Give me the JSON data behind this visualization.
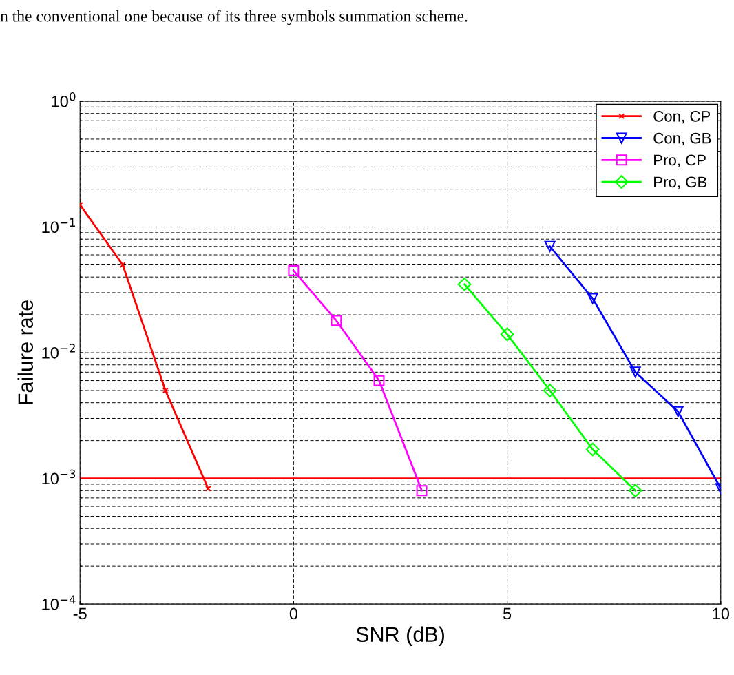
{
  "chart_data": {
    "type": "line",
    "xlabel": "SNR (dB)",
    "ylabel": "Failure rate",
    "annotations": [
      "n the conventional one because of its three symbols summation scheme."
    ],
    "log": "y",
    "grid": true,
    "legend": "top right",
    "line_style": "solid",
    "xlim": [
      -5,
      10
    ],
    "xticks": [
      -5,
      0,
      5,
      10
    ],
    "ylim": [
      0.0001,
      1
    ],
    "yticks": [
      {
        "value": 0.0001,
        "label": "10$^{−4}$"
      },
      {
        "value": 0.001,
        "label": "10$^{−3}$"
      },
      {
        "value": 0.01,
        "label": "10$^{−2}$"
      },
      {
        "value": 0.1,
        "label": "10$^{−1}$"
      },
      {
        "value": 1,
        "label": "10$^{0}$"
      }
    ],
    "series": [
      {
        "name": "Con, CP",
        "color": "#ff0000",
        "marker": "cross",
        "x": [
          -5,
          -4,
          -3,
          -2
        ],
        "values": [
          0.15,
          0.05,
          0.005,
          0.00083
        ]
      },
      {
        "name": "Con, GB",
        "color": "#0000ff",
        "marker": "triangle",
        "x": [
          6,
          7,
          8,
          9,
          10
        ],
        "values": [
          0.07,
          0.027,
          0.007,
          0.0034,
          0.00083
        ]
      },
      {
        "name": "Pro, CP",
        "color": "#ff00ff",
        "marker": "square",
        "x": [
          0,
          1,
          2,
          3
        ],
        "values": [
          0.045,
          0.018,
          0.006,
          0.0008
        ]
      },
      {
        "name": "Pro, GB",
        "color": "#00ff00",
        "marker": "diamond",
        "x": [
          4,
          5,
          6,
          7,
          8
        ],
        "values": [
          0.035,
          0.014,
          0.005,
          0.0017,
          0.0008
        ]
      }
    ],
    "ref_lines": [
      {
        "axis": "y",
        "value": 0.001,
        "color": "#ff0000",
        "line_style": "solid"
      }
    ]
  }
}
